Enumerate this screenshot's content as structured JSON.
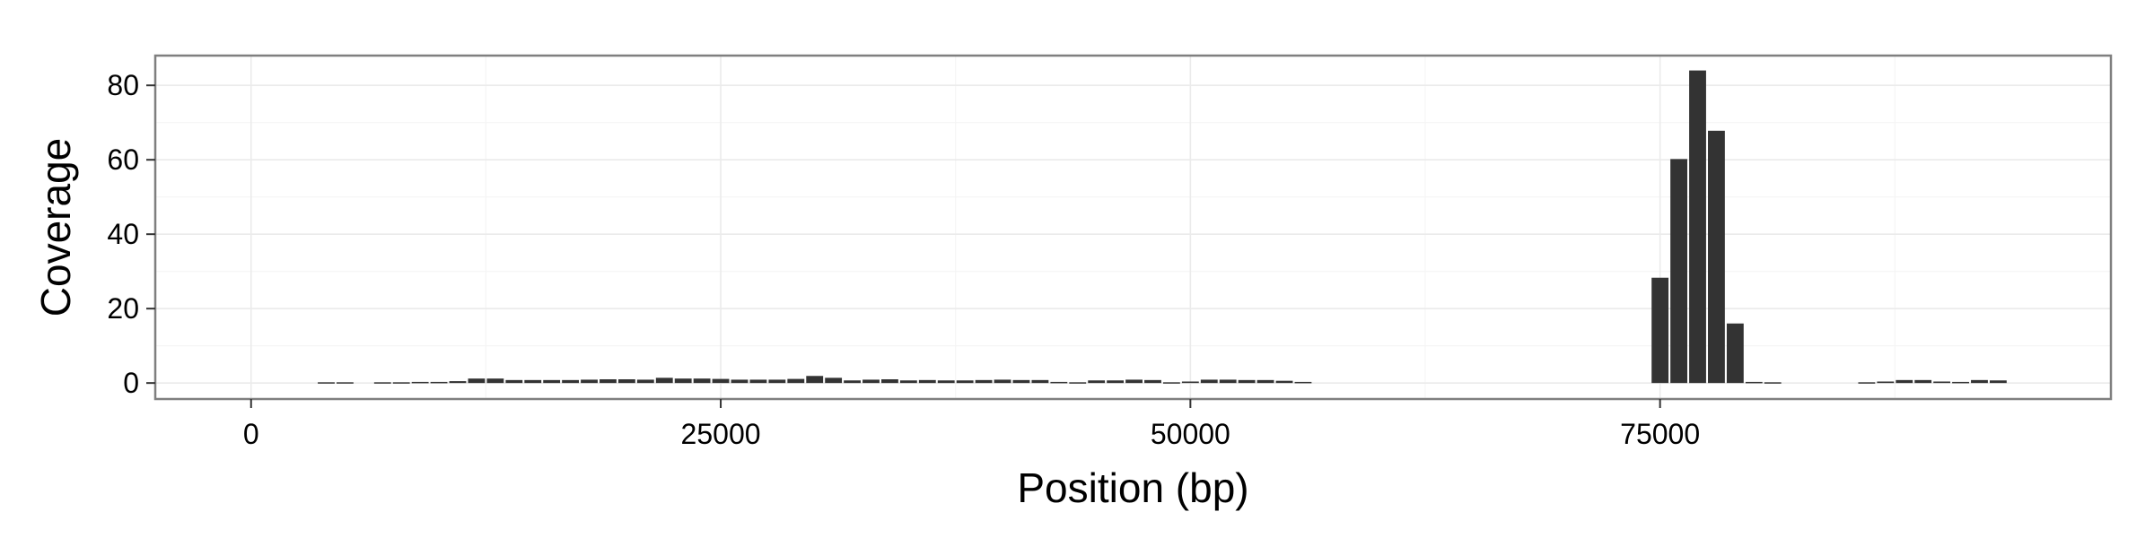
{
  "chart_data": {
    "type": "bar",
    "title": "",
    "xlabel": "Position (bp)",
    "ylabel": "Coverage",
    "xlim": [
      -5100,
      99000
    ],
    "ylim": [
      -4.3,
      88
    ],
    "x_ticks": [
      0,
      25000,
      50000,
      75000
    ],
    "x_tick_labels": [
      "0",
      "25000",
      "50000",
      "75000"
    ],
    "y_ticks": [
      0,
      20,
      40,
      60,
      80
    ],
    "y_tick_labels": [
      "0",
      "20",
      "40",
      "60",
      "80"
    ],
    "grid": true,
    "bin_width": 1000,
    "bar_color": "#333333",
    "panel_border_color": "#7f7f7f",
    "grid_color": "#ebebeb",
    "series": [
      {
        "x": [
          4000,
          5000,
          7000,
          8000,
          9000,
          10000,
          11000,
          12000,
          13000,
          14000,
          15000,
          16000,
          17000,
          18000,
          19000,
          20000,
          21000,
          22000,
          23000,
          24000,
          25000,
          26000,
          27000,
          28000,
          29000,
          30000,
          31000,
          32000,
          33000,
          34000,
          35000,
          36000,
          37000,
          38000,
          39000,
          40000,
          41000,
          42000,
          43000,
          44000,
          45000,
          46000,
          47000,
          48000,
          49000,
          50000,
          51000,
          52000,
          53000,
          54000,
          55000,
          56000,
          75000,
          76000,
          77000,
          78000,
          79000,
          80000,
          81000,
          86000,
          87000,
          88000,
          89000,
          90000,
          91000,
          92000,
          93000
        ],
        "values": [
          0.2,
          0.2,
          0.2,
          0.2,
          0.3,
          0.3,
          0.5,
          1.2,
          1.2,
          0.8,
          0.8,
          0.8,
          0.8,
          0.9,
          1.0,
          1.0,
          0.9,
          1.4,
          1.2,
          1.2,
          1.1,
          0.9,
          0.9,
          0.9,
          1.1,
          1.9,
          1.4,
          0.7,
          0.9,
          1.0,
          0.7,
          0.8,
          0.7,
          0.7,
          0.8,
          0.9,
          0.8,
          0.8,
          0.3,
          0.2,
          0.7,
          0.7,
          0.9,
          0.8,
          0.2,
          0.4,
          0.9,
          0.9,
          0.8,
          0.8,
          0.6,
          0.3,
          28.3,
          60.2,
          84.0,
          67.8,
          16.0,
          0.3,
          0.2,
          0.2,
          0.4,
          0.8,
          0.8,
          0.4,
          0.3,
          0.8,
          0.7
        ]
      }
    ]
  }
}
